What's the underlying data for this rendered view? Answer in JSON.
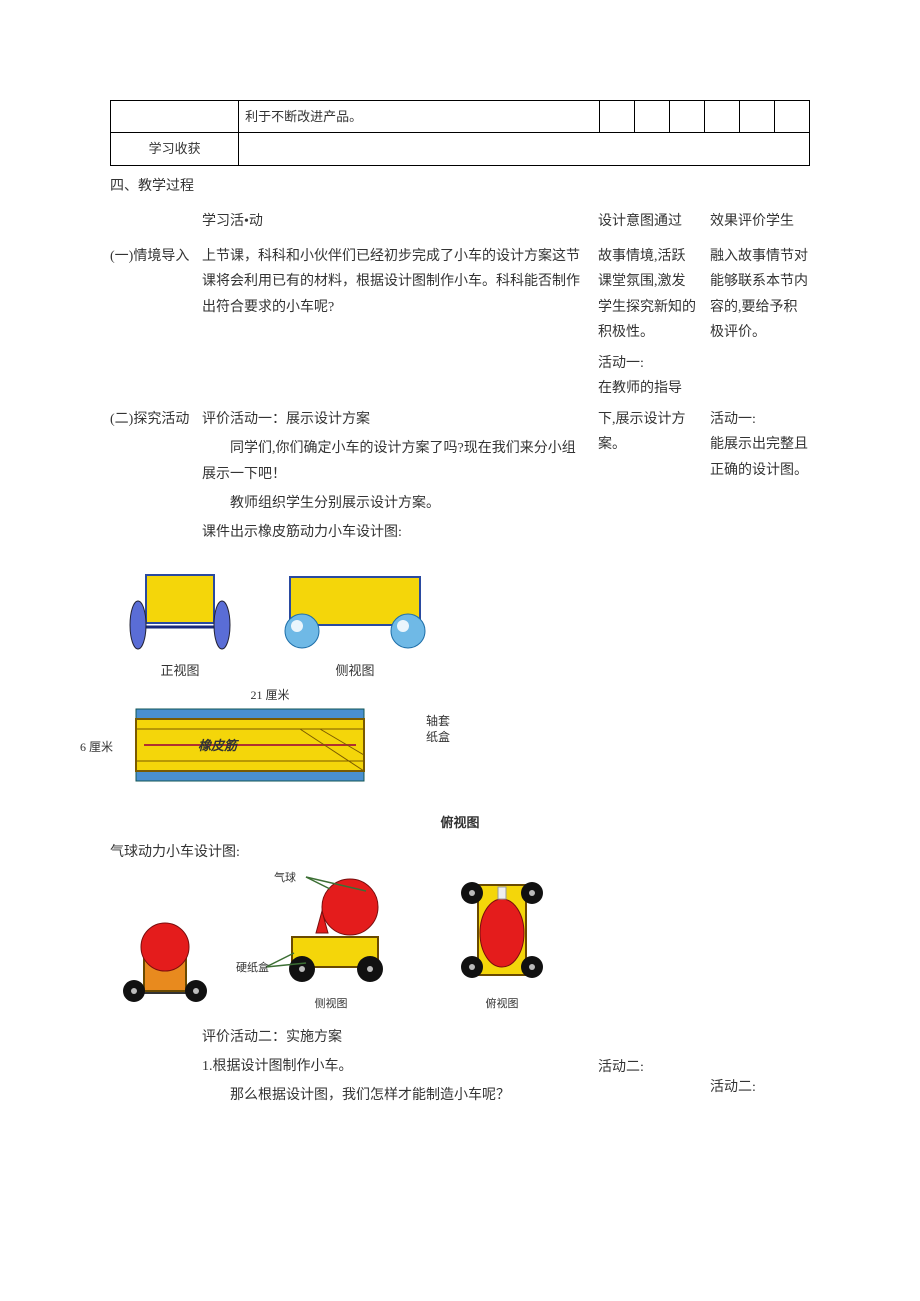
{
  "topTable": {
    "row1c2": "利于不断改进产品。",
    "row2c1": "学习收获"
  },
  "sectionHeading": "四、教学过程",
  "columns": {
    "midHead": "学习活•动",
    "r1Head": "设计意图通过",
    "r2Head": "效果评价学生"
  },
  "part1": {
    "label": "(一)情境导入",
    "mid": "上节课，科科和小伙伴们已经初步完成了小车的设计方案这节课将会利用已有的材料，根据设计图制作小车。科科能否制作出符合要求的小车呢?",
    "r1": "故事情境,活跃课堂氛围,激发学生探究新知的积极性。",
    "r2": "融入故事情节对能够联系本节内容的,要给予积极评价。"
  },
  "activity1R1a": "活动一:",
  "activity1R1b": "在教师的指导",
  "part2": {
    "label": "(二)探究活动",
    "lineA": "评价活动一：展示设计方案",
    "lineB": "同学们,你们确定小车的设计方案了吗?现在我们来分小组展示一下吧！",
    "lineC": "教师组织学生分别展示设计方案。",
    "lineD": "课件出示橡皮筋动力小车设计图:",
    "r1": "下,展示设计方案。",
    "r2a": "活动一:",
    "r2b": "能展示出完整且正确的设计图。"
  },
  "diagrams": {
    "front": {
      "caption": "正视图",
      "cart_fill": "#f4d60a",
      "cart_stroke": "#2a4aa0",
      "wheel_fill": "#5a6dd6",
      "wheel_stroke": "#223",
      "line_stroke": "#1a2a7a"
    },
    "side": {
      "caption": "侧视图",
      "cart_fill": "#f4d60a",
      "cart_stroke": "#2a4aa0",
      "wheel_fill": "#6fb9e6",
      "wheel_highlight": "#eaf5fc",
      "wheel_stroke": "#1d6ea8"
    },
    "top": {
      "caption": "俯视图",
      "width_label": "21 厘米",
      "height_label": "6 厘米",
      "label1": "轴套",
      "label2": "纸盒",
      "inner_label": "橡皮筋",
      "body_fill": "#f4d60a",
      "body_stroke": "#7a5a00",
      "axle_fill": "#4a8fd0",
      "rubber_stroke": "#b03030"
    },
    "balloon": {
      "heading": "气球动力小车设计图:",
      "front": {
        "caption": ""
      },
      "side": {
        "caption": "侧视图",
        "anno_balloon": "气球",
        "anno_box": "硬纸盒"
      },
      "topv": {
        "caption": "俯视图"
      },
      "colors": {
        "balloon_fill": "#e41c1c",
        "balloon_stroke": "#7a0d0d",
        "box_fill": "#f4d60a",
        "box_fill2": "#e88a1e",
        "box_stroke": "#6a4a00",
        "wheel_fill": "#111",
        "wheel_hub": "#bbb",
        "line": "#3c6f34"
      }
    }
  },
  "eval2": {
    "title": "评价活动二：实施方案",
    "line1": "1.根据设计图制作小车。",
    "line2": "那么根据设计图，我们怎样才能制造小车呢？",
    "r1": "活动二:",
    "r2": "活动二:"
  }
}
